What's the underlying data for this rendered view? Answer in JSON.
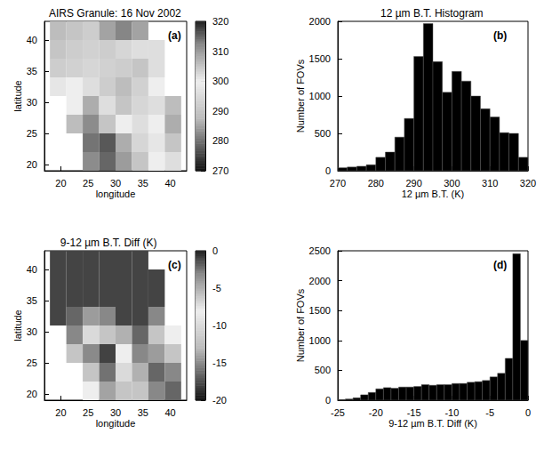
{
  "chart_data": [
    {
      "type": "heatmap",
      "title": "AIRS Granule: 16 Nov 2002",
      "panel": "(a)",
      "x_label": "longitude",
      "y_label": "latitude",
      "xlim": [
        17,
        43
      ],
      "ylim": [
        19,
        43
      ],
      "xticks": [
        20,
        25,
        30,
        35,
        40
      ],
      "yticks": [
        20,
        25,
        30,
        35,
        40
      ],
      "grid": false,
      "lon_edges": [
        18,
        21,
        24,
        27,
        30,
        33,
        36,
        39,
        42
      ],
      "lat_edges": [
        19,
        22,
        25,
        28,
        31,
        34,
        37,
        40,
        43
      ],
      "cells": [
        [
          null,
          null,
          312,
          315,
          310,
          305,
          300,
          302
        ],
        [
          null,
          null,
          314,
          316,
          308,
          303,
          298,
          305
        ],
        [
          null,
          306,
          312,
          305,
          300,
          296,
          300,
          308
        ],
        [
          null,
          300,
          308,
          296,
          290,
          294,
          302,
          306
        ],
        [
          298,
          300,
          302,
          292,
          288,
          293,
          300,
          null
        ],
        [
          292,
          293,
          294,
          293,
          292,
          290,
          296,
          null
        ],
        [
          290,
          292,
          293,
          292,
          294,
          296,
          296,
          null
        ],
        [
          288,
          290,
          292,
          285,
          282,
          285,
          null,
          null
        ]
      ],
      "colorbar": {
        "range": [
          270,
          320
        ],
        "ticks": [
          270,
          280,
          290,
          300,
          310,
          320
        ]
      }
    },
    {
      "type": "histogram",
      "title": "12 µm B.T. Histogram",
      "panel": "(b)",
      "x_label": "12 µm B.T. (K)",
      "y_label": "Number of FOVs",
      "xlim": [
        270,
        320
      ],
      "ylim": [
        0,
        2000
      ],
      "xticks": [
        270,
        280,
        290,
        300,
        310,
        320
      ],
      "yticks": [
        0,
        500,
        1000,
        1500,
        2000
      ],
      "grid": false,
      "color": "#000000",
      "bins": [
        270,
        272.5,
        275,
        277.5,
        280,
        282.5,
        285,
        287.5,
        290,
        292.5,
        295,
        297.5,
        300,
        302.5,
        305,
        307.5,
        310,
        312.5,
        315,
        317.5,
        320
      ],
      "values": [
        40,
        50,
        60,
        80,
        180,
        250,
        450,
        700,
        1530,
        1970,
        1460,
        1050,
        1330,
        1200,
        1000,
        830,
        720,
        510,
        500,
        180
      ]
    },
    {
      "type": "heatmap",
      "title": "9-12 µm B.T. Diff (K)",
      "panel": "(c)",
      "x_label": "longitude",
      "y_label": "latitude",
      "xlim": [
        17,
        43
      ],
      "ylim": [
        19,
        43
      ],
      "xticks": [
        20,
        25,
        30,
        35,
        40
      ],
      "yticks": [
        20,
        25,
        30,
        35,
        40
      ],
      "grid": false,
      "lon_edges": [
        18,
        21,
        24,
        27,
        30,
        33,
        36,
        39,
        42
      ],
      "lat_edges": [
        19,
        22,
        25,
        28,
        31,
        34,
        37,
        40,
        43
      ],
      "cells": [
        [
          null,
          null,
          -8,
          -14,
          -12,
          -6,
          -3,
          -2
        ],
        [
          null,
          null,
          -12,
          -16,
          -10,
          -5,
          -2,
          -3
        ],
        [
          null,
          -6,
          -15,
          -18,
          -8,
          -3,
          -4,
          -6
        ],
        [
          null,
          -3,
          -10,
          -12,
          -5,
          -2,
          -6,
          -8
        ],
        [
          -1,
          -2,
          -4,
          -3,
          -1,
          -1,
          -3,
          null
        ],
        [
          -1,
          -1,
          -1,
          -1,
          -1,
          -1,
          -1,
          null
        ],
        [
          -1,
          -1,
          -1,
          -1,
          -1,
          -1,
          -1,
          null
        ],
        [
          -1,
          -1,
          -1,
          -1,
          -1,
          -1,
          null,
          null
        ]
      ],
      "colorbar": {
        "range": [
          -20,
          0
        ],
        "ticks": [
          -20,
          -15,
          -10,
          -5,
          0
        ]
      }
    },
    {
      "type": "histogram",
      "panel": "(d)",
      "x_label": "9-12 µm B.T. Diff (K)",
      "y_label": "Number of FOVs",
      "xlim": [
        -25,
        0
      ],
      "ylim": [
        0,
        2500
      ],
      "xticks": [
        -25,
        -20,
        -15,
        -10,
        -5,
        0
      ],
      "yticks": [
        0,
        500,
        1000,
        1500,
        2000,
        2500
      ],
      "grid": false,
      "color": "#000000",
      "bins": [
        -25,
        -24,
        -23,
        -22,
        -21,
        -20,
        -19,
        -18,
        -17,
        -16,
        -15,
        -14,
        -13,
        -12,
        -11,
        -10,
        -9,
        -8,
        -7,
        -6,
        -5,
        -4,
        -3,
        -2,
        -1,
        0
      ],
      "values": [
        10,
        20,
        40,
        90,
        130,
        190,
        210,
        200,
        220,
        220,
        230,
        260,
        250,
        260,
        260,
        280,
        280,
        300,
        310,
        330,
        390,
        450,
        700,
        2450,
        1000
      ]
    }
  ]
}
